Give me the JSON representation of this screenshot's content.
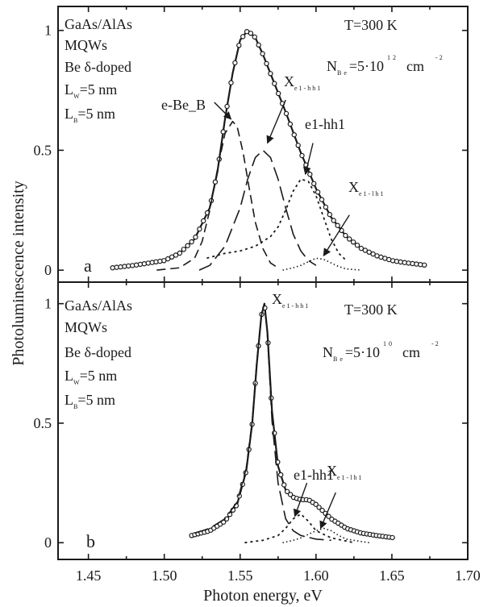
{
  "chart_data": {
    "type": "line",
    "x_axis": {
      "label": "Photon energy, eV",
      "range": [
        1.43,
        1.7
      ],
      "ticks": [
        1.45,
        1.5,
        1.55,
        1.6,
        1.65,
        1.7
      ],
      "tick_labels": [
        "1.45",
        "1.50",
        "1.55",
        "1.60",
        "1.65",
        "1.70"
      ]
    },
    "y_axis_label": "Photoluminescence intensity",
    "panels": [
      {
        "panel_label": "a",
        "y_range": [
          -0.05,
          1.1
        ],
        "y_ticks": [
          0,
          0.5,
          1
        ],
        "y_tick_labels": [
          "0",
          "0.5",
          "1"
        ],
        "sample_text": [
          "GaAs/AlAs",
          "MQWs",
          "Be δ-doped"
        ],
        "lw": {
          "main": "L",
          "sub": "W",
          "value": "=5 nm"
        },
        "lb": {
          "main": "L",
          "sub": "B",
          "value": "=5 nm"
        },
        "temperature": "T=300 K",
        "concentration": {
          "n": "N",
          "sub": "Be",
          "value": "=5·10",
          "exp": "12",
          "unit": "cm",
          "unit_exp": "-2"
        },
        "annotations": {
          "ebe": "e-Be_B",
          "x_main": "X",
          "x_sub": "e1-hh1",
          "e1hh1": "e1-hh1",
          "x2_main": "X",
          "x2_sub": "e1-lh1"
        },
        "series": [
          {
            "style": "solid",
            "x": [
              1.466,
              1.48,
              1.5,
              1.51,
              1.52,
              1.53,
              1.535,
              1.54,
              1.545,
              1.55,
              1.555,
              1.56,
              1.565,
              1.57,
              1.58,
              1.59,
              1.6,
              1.61,
              1.62,
              1.63,
              1.64,
              1.65,
              1.66,
              1.673
            ],
            "y": [
              0.01,
              0.02,
              0.04,
              0.07,
              0.13,
              0.26,
              0.41,
              0.63,
              0.82,
              0.96,
              1.0,
              0.97,
              0.9,
              0.82,
              0.66,
              0.49,
              0.34,
              0.22,
              0.14,
              0.09,
              0.06,
              0.04,
              0.03,
              0.02
            ]
          },
          {
            "style": "dashed",
            "x": [
              1.495,
              1.51,
              1.52,
              1.525,
              1.53,
              1.535,
              1.54,
              1.545,
              1.548,
              1.552,
              1.556,
              1.56,
              1.565,
              1.57,
              1.575
            ],
            "y": [
              0.0,
              0.01,
              0.05,
              0.12,
              0.25,
              0.42,
              0.57,
              0.62,
              0.6,
              0.49,
              0.34,
              0.2,
              0.09,
              0.03,
              0.01
            ]
          },
          {
            "style": "long-dashed",
            "x": [
              1.523,
              1.53,
              1.54,
              1.55,
              1.555,
              1.56,
              1.565,
              1.57,
              1.575,
              1.58,
              1.585,
              1.59,
              1.595,
              1.6
            ],
            "y": [
              0.0,
              0.02,
              0.1,
              0.26,
              0.38,
              0.47,
              0.5,
              0.47,
              0.38,
              0.26,
              0.15,
              0.08,
              0.04,
              0.02
            ]
          },
          {
            "style": "dotted",
            "x": [
              1.528,
              1.54,
              1.55,
              1.56,
              1.57,
              1.575,
              1.58,
              1.585,
              1.59,
              1.595,
              1.6,
              1.605,
              1.61,
              1.615,
              1.62
            ],
            "y": [
              0.05,
              0.07,
              0.08,
              0.1,
              0.14,
              0.18,
              0.25,
              0.33,
              0.38,
              0.37,
              0.31,
              0.22,
              0.13,
              0.07,
              0.04
            ]
          },
          {
            "style": "dotted-fine",
            "x": [
              1.578,
              1.585,
              1.59,
              1.595,
              1.6,
              1.605,
              1.61,
              1.615,
              1.62,
              1.63
            ],
            "y": [
              0.0,
              0.01,
              0.02,
              0.035,
              0.05,
              0.045,
              0.03,
              0.015,
              0.005,
              0.0
            ]
          }
        ],
        "arrows": [
          {
            "from": [
              1.533,
              0.7
            ],
            "to": [
              1.544,
              0.63
            ]
          },
          {
            "from": [
              1.58,
              0.71
            ],
            "to": [
              1.568,
              0.53
            ]
          },
          {
            "from": [
              1.598,
              0.53
            ],
            "to": [
              1.593,
              0.4
            ]
          },
          {
            "from": [
              1.622,
              0.23
            ],
            "to": [
              1.605,
              0.06
            ]
          }
        ]
      },
      {
        "panel_label": "b",
        "y_range": [
          -0.07,
          1.09
        ],
        "y_ticks": [
          0,
          0.5,
          1
        ],
        "y_tick_labels": [
          "0",
          "0.5",
          "1"
        ],
        "sample_text": [
          "GaAs/AlAs",
          "MQWs",
          "Be δ-doped"
        ],
        "lw": {
          "main": "L",
          "sub": "W",
          "value": "=5 nm"
        },
        "lb": {
          "main": "L",
          "sub": "B",
          "value": "=5 nm"
        },
        "temperature": "T=300 K",
        "concentration": {
          "n": "N",
          "sub": "Be",
          "value": "=5·10",
          "exp": "10",
          "unit": "cm",
          "unit_exp": "-2"
        },
        "annotations": {
          "x_main": "X",
          "x_sub": "e1-hh1",
          "e1hh1": "e1-hh1",
          "x2_main": "X",
          "x2_sub": "e1-lh1"
        },
        "series": [
          {
            "style": "solid",
            "x": [
              1.518,
              1.53,
              1.54,
              1.548,
              1.554,
              1.558,
              1.561,
              1.564,
              1.566,
              1.568,
              1.571,
              1.575,
              1.58,
              1.585,
              1.59,
              1.595,
              1.6,
              1.605,
              1.61,
              1.62,
              1.63,
              1.64,
              1.652
            ],
            "y": [
              0.03,
              0.05,
              0.09,
              0.16,
              0.3,
              0.5,
              0.75,
              0.95,
              1.0,
              0.88,
              0.55,
              0.32,
              0.22,
              0.19,
              0.18,
              0.18,
              0.16,
              0.13,
              0.1,
              0.06,
              0.04,
              0.03,
              0.02
            ]
          },
          {
            "style": "long-dashed",
            "x": [
              1.52,
              1.53,
              1.54,
              1.548,
              1.554,
              1.558,
              1.561,
              1.564,
              1.566,
              1.568,
              1.571,
              1.575,
              1.58,
              1.585,
              1.59,
              1.6,
              1.61
            ],
            "y": [
              0.04,
              0.06,
              0.1,
              0.17,
              0.31,
              0.51,
              0.76,
              0.95,
              1.0,
              0.87,
              0.51,
              0.25,
              0.1,
              0.05,
              0.03,
              0.015,
              0.01
            ]
          },
          {
            "style": "dotted",
            "x": [
              1.553,
              1.565,
              1.575,
              1.58,
              1.585,
              1.59,
              1.595,
              1.6,
              1.61,
              1.625
            ],
            "y": [
              0.0,
              0.01,
              0.03,
              0.06,
              0.1,
              0.12,
              0.09,
              0.05,
              0.02,
              0.0
            ]
          },
          {
            "style": "dotted-fine",
            "x": [
              1.578,
              1.585,
              1.59,
              1.595,
              1.6,
              1.605,
              1.61,
              1.615,
              1.62,
              1.63,
              1.635
            ],
            "y": [
              0.0,
              0.01,
              0.02,
              0.035,
              0.05,
              0.06,
              0.05,
              0.03,
              0.015,
              0.005,
              0.0
            ]
          }
        ],
        "arrows": [
          {
            "from": [
              1.594,
              0.25
            ],
            "to": [
              1.586,
              0.11
            ]
          },
          {
            "from": [
              1.613,
              0.21
            ],
            "to": [
              1.603,
              0.06
            ]
          }
        ]
      }
    ]
  }
}
